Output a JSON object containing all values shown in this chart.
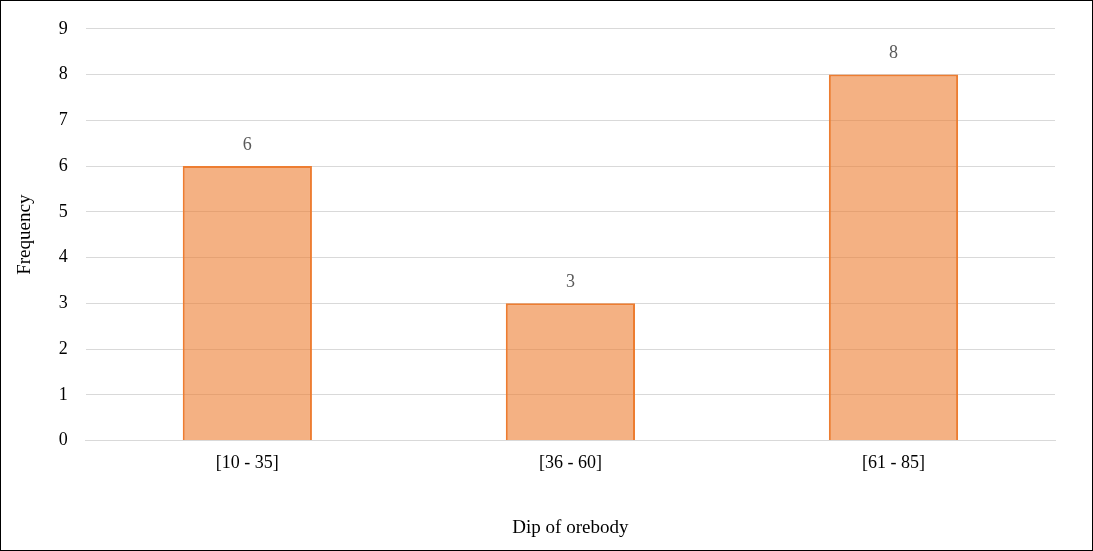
{
  "chart_data": {
    "type": "bar",
    "xlabel": "Dip of orebody",
    "ylabel": "Frequency",
    "categories": [
      "[10 - 35]",
      "[36 - 60]",
      "[61 - 85]"
    ],
    "values": [
      6,
      3,
      8
    ],
    "color": "#ed7d31",
    "ylim": [
      0,
      9
    ],
    "yticks": [
      0,
      1,
      2,
      3,
      4,
      5,
      6,
      7,
      8,
      9
    ],
    "grid": "y",
    "data_labels": true
  }
}
